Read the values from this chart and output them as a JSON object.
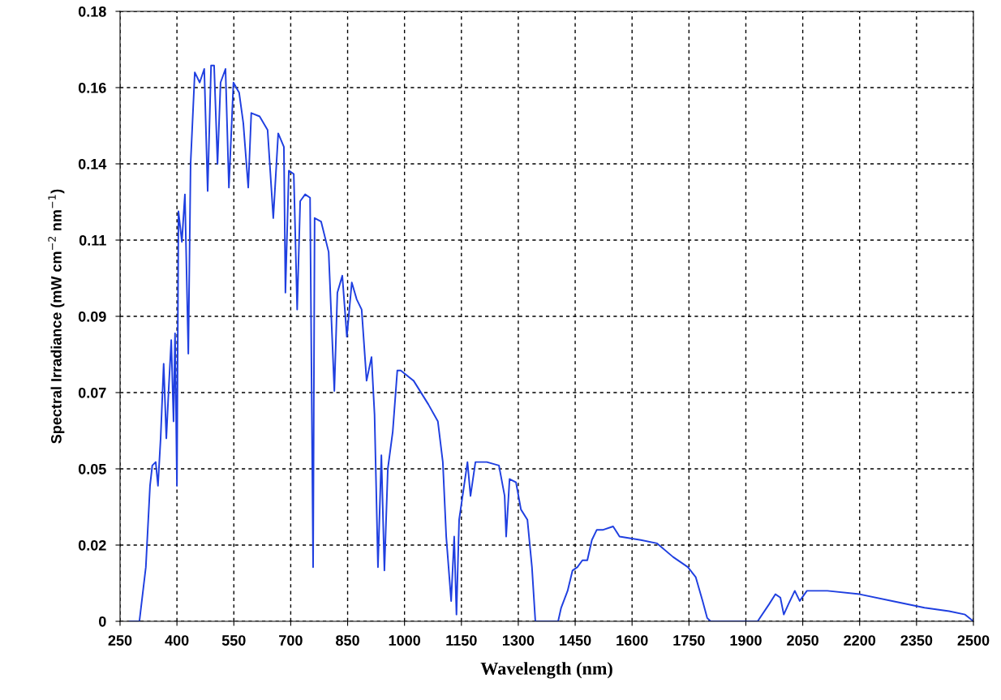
{
  "chart_data": {
    "type": "line",
    "xlabel": "Wavelength (nm)",
    "ylabel": "Spectral Irradiance (mW cm$^{−2}$ nm$^{−1}$)",
    "x": [
      276,
      301,
      318,
      329,
      335,
      344,
      350,
      357,
      365,
      372,
      378,
      385,
      391,
      395,
      400,
      404,
      413,
      421,
      430,
      436,
      447,
      460,
      472,
      481,
      490,
      498,
      507,
      515,
      528,
      537,
      549,
      564,
      575,
      588,
      596,
      618,
      639,
      654,
      667,
      682,
      686,
      695,
      708,
      717,
      725,
      738,
      751,
      759,
      763,
      780,
      800,
      815,
      823,
      836,
      848,
      861,
      874,
      887,
      900,
      913,
      921,
      930,
      939,
      947,
      956,
      969,
      981,
      990,
      1024,
      1063,
      1088,
      1101,
      1110,
      1123,
      1131,
      1137,
      1144,
      1157,
      1166,
      1174,
      1187,
      1217,
      1249,
      1264,
      1268,
      1277,
      1294,
      1307,
      1324,
      1336,
      1345,
      1405,
      1413,
      1430,
      1443,
      1456,
      1469,
      1482,
      1494,
      1507,
      1524,
      1550,
      1567,
      1623,
      1666,
      1708,
      1747,
      1768,
      1786,
      1798,
      1807,
      1931,
      1961,
      1978,
      1991,
      2000,
      2012,
      2029,
      2042,
      2061,
      2115,
      2200,
      2286,
      2371,
      2436,
      2478,
      2500
    ],
    "series": [
      {
        "color": "#1f3fe0",
        "values": [
          0,
          0,
          0.016,
          0.04,
          0.046,
          0.047,
          0.04,
          0.054,
          0.076,
          0.054,
          0.068,
          0.083,
          0.059,
          0.085,
          0.04,
          0.121,
          0.112,
          0.126,
          0.079,
          0.135,
          0.162,
          0.159,
          0.163,
          0.127,
          0.164,
          0.164,
          0.135,
          0.159,
          0.163,
          0.128,
          0.159,
          0.156,
          0.147,
          0.128,
          0.15,
          0.149,
          0.145,
          0.119,
          0.144,
          0.14,
          0.097,
          0.133,
          0.132,
          0.092,
          0.124,
          0.126,
          0.125,
          0.016,
          0.119,
          0.118,
          0.109,
          0.068,
          0.097,
          0.102,
          0.084,
          0.1,
          0.095,
          0.092,
          0.071,
          0.078,
          0.061,
          0.016,
          0.049,
          0.015,
          0.045,
          0.056,
          0.074,
          0.074,
          0.071,
          0.064,
          0.059,
          0.047,
          0.025,
          0.006,
          0.025,
          0.002,
          0.03,
          0.04,
          0.047,
          0.037,
          0.047,
          0.047,
          0.046,
          0.037,
          0.025,
          0.042,
          0.041,
          0.033,
          0.03,
          0.016,
          0,
          0,
          0.004,
          0.009,
          0.015,
          0.016,
          0.018,
          0.018,
          0.024,
          0.027,
          0.027,
          0.028,
          0.025,
          0.024,
          0.023,
          0.019,
          0.016,
          0.013,
          0.006,
          0.001,
          0,
          0,
          0.005,
          0.008,
          0.007,
          0.002,
          0.005,
          0.009,
          0.006,
          0.009,
          0.009,
          0.008,
          0.006,
          0.004,
          0.003,
          0.002,
          0
        ]
      }
    ],
    "xlim": [
      250,
      2500
    ],
    "xticks": [
      250,
      400,
      550,
      700,
      850,
      1000,
      1150,
      1300,
      1450,
      1600,
      1750,
      1900,
      2050,
      2200,
      2350,
      2500
    ],
    "ylim": [
      0,
      0.18
    ],
    "yticks": [
      0,
      {
        "value": 0.0225,
        "label": "0.02"
      },
      {
        "value": 0.045,
        "label": "0.05"
      },
      {
        "value": 0.0675,
        "label": "0.07"
      },
      {
        "value": 0.09,
        "label": "0.09"
      },
      {
        "value": 0.1125,
        "label": "0.11"
      },
      {
        "value": 0.135,
        "label": "0.14"
      },
      {
        "value": 0.1575,
        "label": "0.16"
      },
      0.18
    ],
    "grid": true,
    "line_style": "solid"
  }
}
